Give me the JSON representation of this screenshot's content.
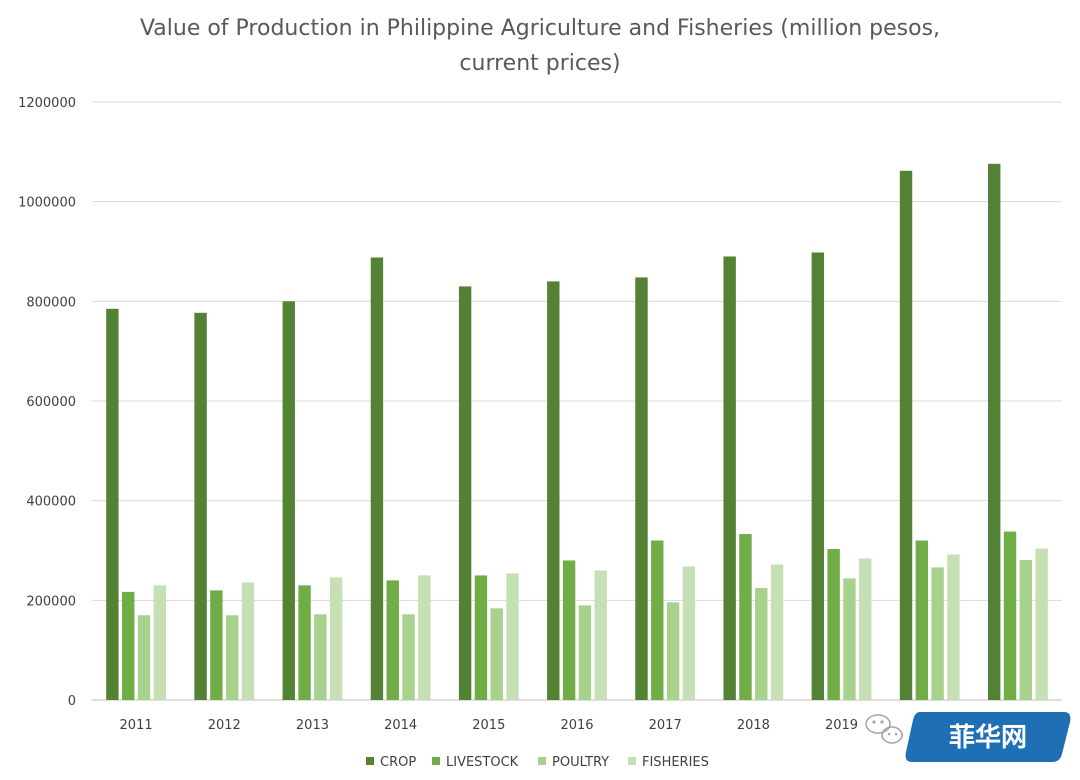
{
  "chart_data": {
    "type": "bar",
    "title_lines": [
      "Value of Production in Philippine Agriculture and Fisheries (million pesos,",
      "current prices)"
    ],
    "xlabel": "",
    "ylabel": "",
    "ylim": [
      0,
      1200000
    ],
    "yticks": [
      "0",
      "200000",
      "400000",
      "600000",
      "800000",
      "1000000",
      "1200000"
    ],
    "grid": true,
    "legend_position": "bottom",
    "categories": [
      "2011",
      "2012",
      "2013",
      "2014",
      "2015",
      "2016",
      "2017",
      "2018",
      "2019",
      "",
      ""
    ],
    "series": [
      {
        "name": "CROP",
        "color": "#548235",
        "values": [
          785000,
          777000,
          800000,
          888000,
          830000,
          840000,
          848000,
          890000,
          898000,
          1062000,
          1076000
        ]
      },
      {
        "name": "LIVESTOCK",
        "color": "#70ad47",
        "values": [
          217000,
          220000,
          230000,
          240000,
          250000,
          280000,
          320000,
          333000,
          303000,
          320000,
          338000
        ]
      },
      {
        "name": "POULTRY",
        "color": "#a9d18e",
        "values": [
          170000,
          170000,
          172000,
          172000,
          184000,
          190000,
          196000,
          225000,
          244000,
          266000,
          281000
        ]
      },
      {
        "name": "FISHERIES",
        "color": "#c5e0b4",
        "values": [
          230000,
          236000,
          246000,
          250000,
          254000,
          260000,
          268000,
          272000,
          284000,
          292000,
          304000
        ]
      }
    ]
  },
  "watermark": {
    "text": "菲华网",
    "badge_color": "#1f6fb5",
    "icon": "wechat-icon"
  }
}
